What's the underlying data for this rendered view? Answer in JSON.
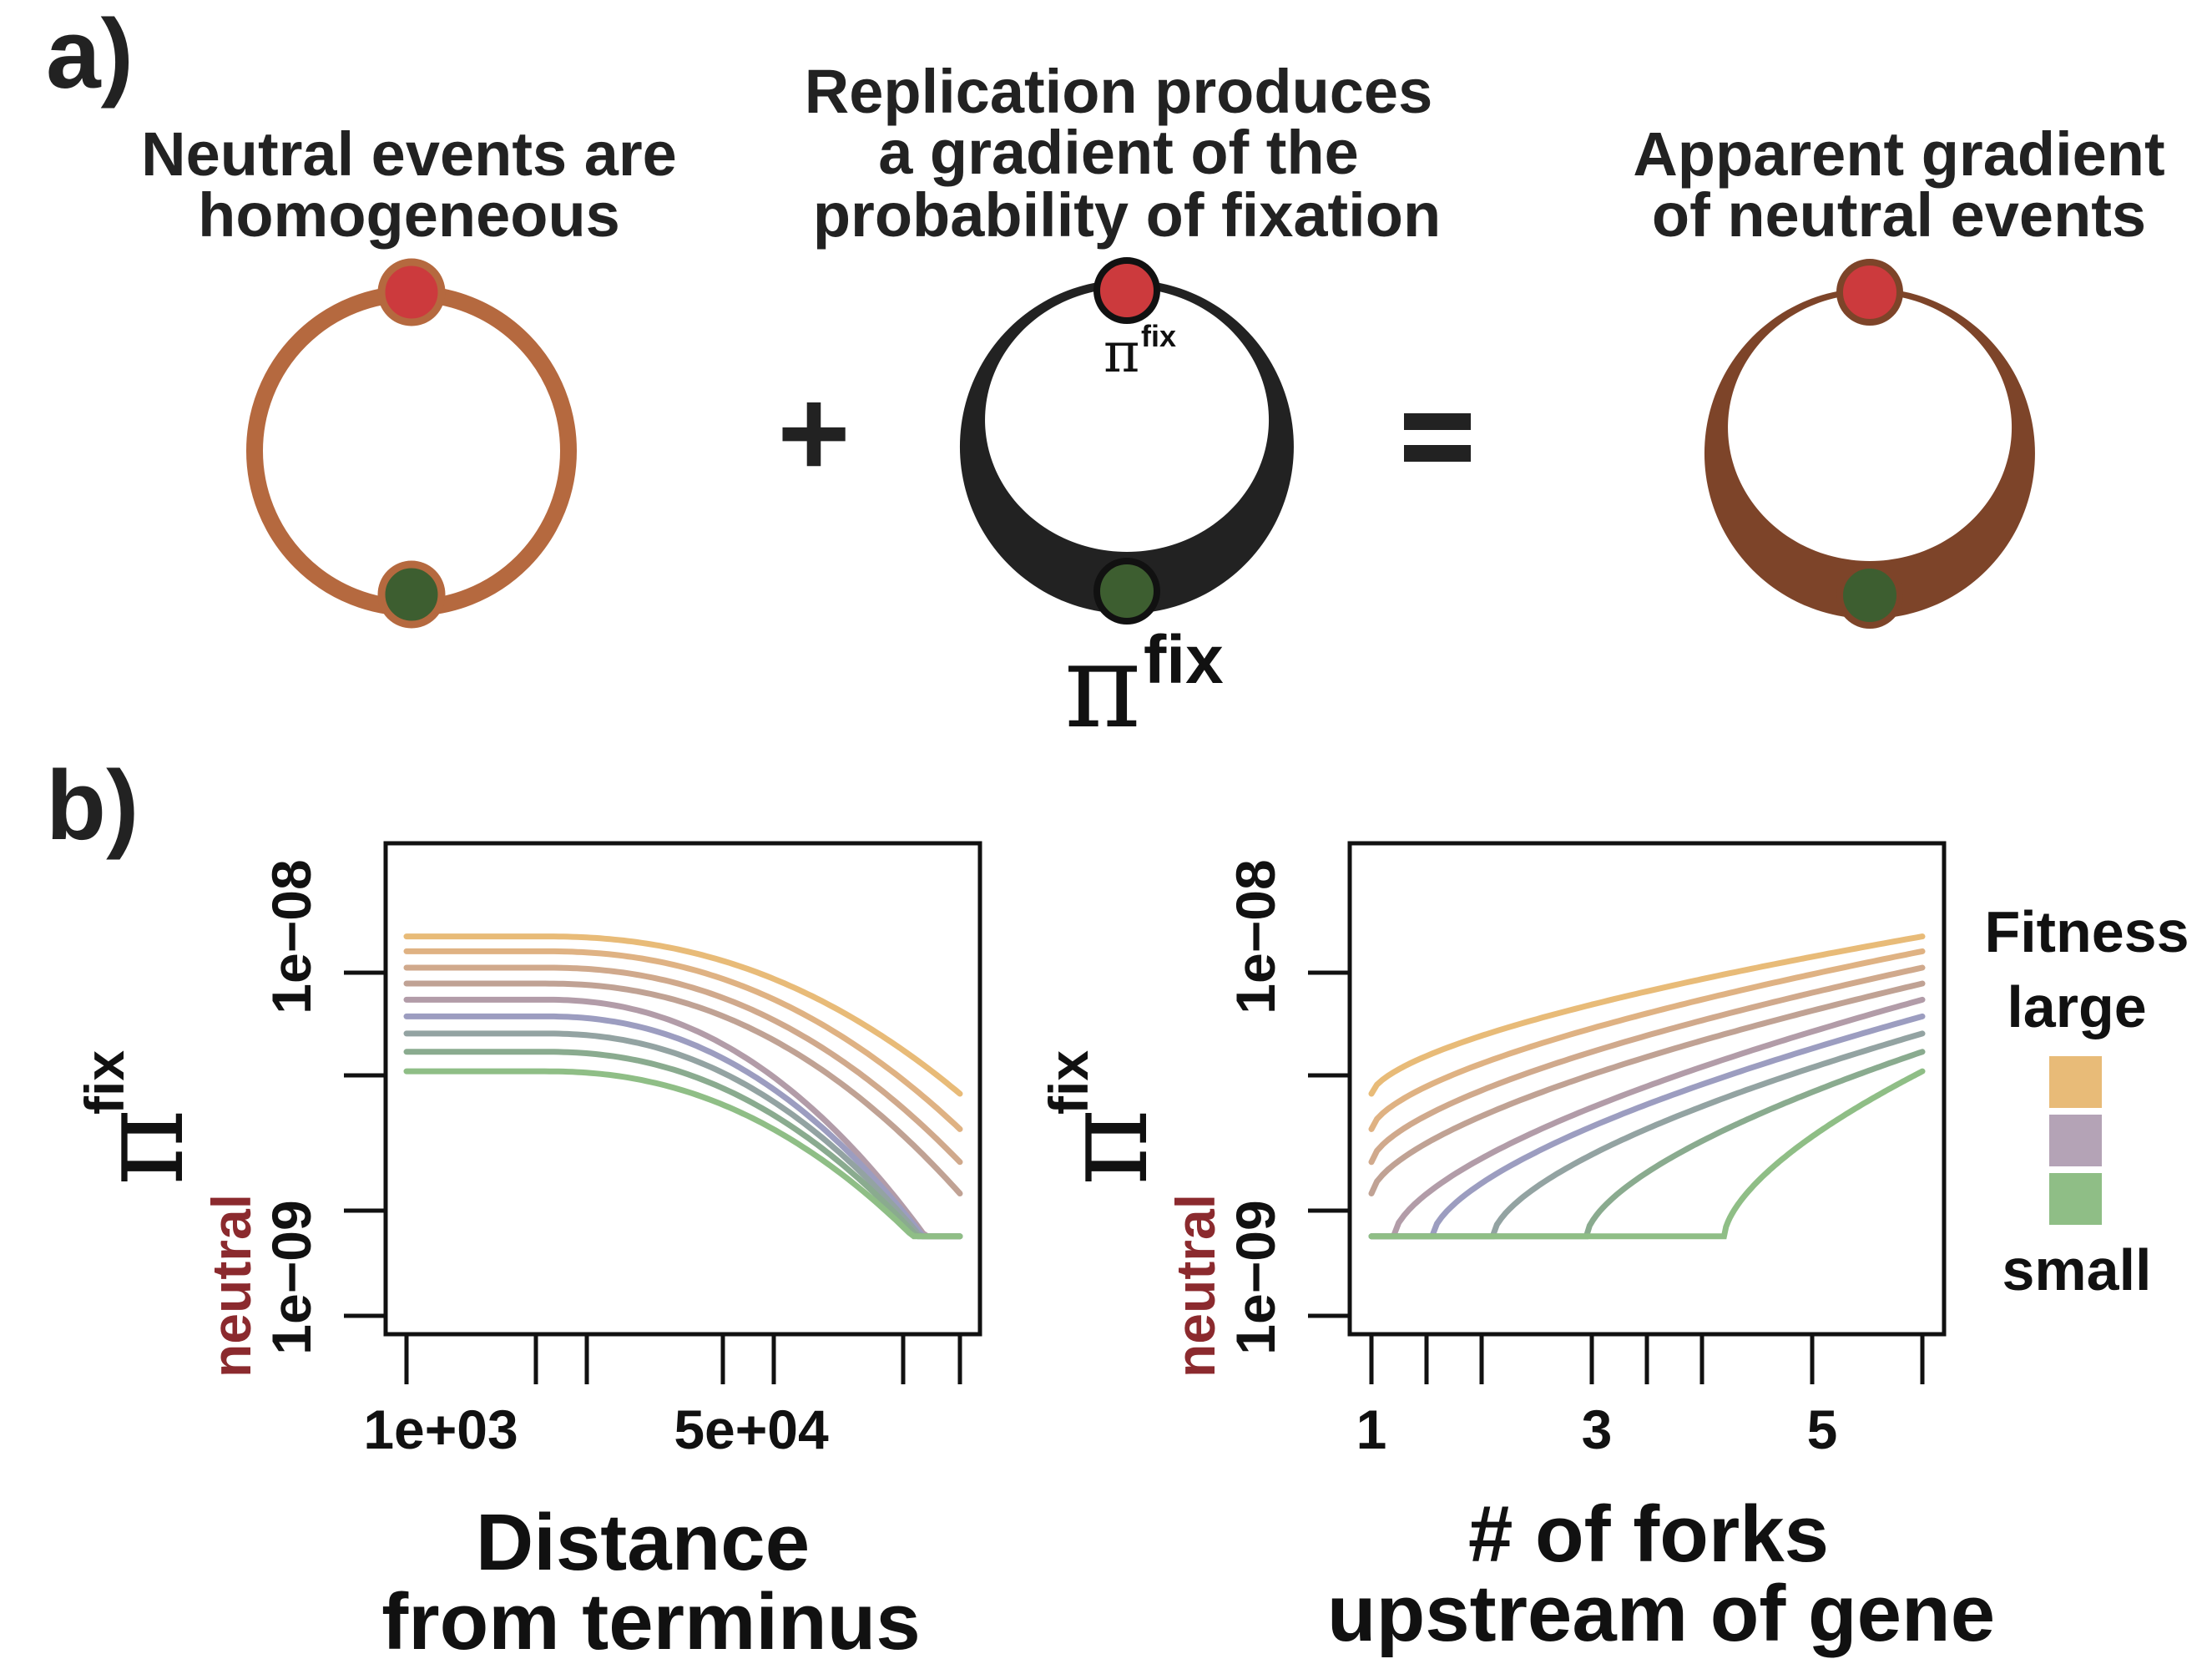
{
  "panel_a": {
    "label": "a)",
    "left_title": [
      "Neutral events are",
      "homogeneous"
    ],
    "middle_title": [
      "Replication produces",
      "a gradient of the",
      "probability of fixation"
    ],
    "right_title": [
      "Apparent gradient",
      "of neutral events"
    ],
    "plus": "+",
    "equals": "=",
    "pi_symbol": "π",
    "fix_text": "fix",
    "colors": {
      "ring_left": "#b5693f",
      "ring_black": "#222222",
      "ring_right": "#7d4429",
      "origin_dot": "#cc3a3d",
      "terminus_dot": "#3d5e30"
    }
  },
  "panel_b": {
    "label": "b)",
    "legend": {
      "title": "Fitness",
      "top": "large",
      "bottom": "small",
      "swatches": [
        "#e8bb78",
        "#b4a3b6",
        "#8fbe86"
      ]
    }
  },
  "chart_data": [
    {
      "type": "line",
      "xlabel": [
        "Distance",
        "from terminus"
      ],
      "ylabel_symbol": "π",
      "ylabel_sup": "fix",
      "x_scale": "log",
      "y_scale": "log",
      "x_ticks": [
        "1e+03",
        "5e+04"
      ],
      "y_ticks": [
        {
          "text": "1e−08",
          "color": "#111111",
          "value": 1e-08
        },
        {
          "text": "1e−09",
          "color": "#111111",
          "value": 1e-09
        },
        {
          "text": "neutral",
          "color": "#8b2a2e",
          "value": 7.8e-10
        }
      ],
      "series_colors": [
        "#e8bb78",
        "#dfb283",
        "#d0a98c",
        "#c0a294",
        "#b29ca8",
        "#9c9dc0",
        "#93a3a2",
        "#8aab8f",
        "#8fbe86"
      ],
      "series": [
        {
          "values_desc": "flat near top then declining at large distance",
          "plateau": 1.42e-08,
          "end": 3.1e-09
        },
        {
          "plateau": 1.23e-08,
          "end": 2.2e-09
        },
        {
          "plateau": 1.05e-08,
          "end": 1.6e-09
        },
        {
          "plateau": 9e-09,
          "end": 1.18e-09
        },
        {
          "plateau": 7.7e-09,
          "end": 7.8e-10
        },
        {
          "plateau": 6.55e-09,
          "end": 7.8e-10
        },
        {
          "plateau": 5.55e-09,
          "end": 7.8e-10
        },
        {
          "plateau": 4.65e-09,
          "end": 7.8e-10
        },
        {
          "plateau": 3.85e-09,
          "end": 7.8e-10
        }
      ]
    },
    {
      "type": "line",
      "xlabel": [
        "# of forks",
        "upstream of gene"
      ],
      "ylabel_symbol": "π",
      "ylabel_sup": "fix",
      "x_scale": "linear",
      "y_scale": "log",
      "xlim": [
        1,
        6
      ],
      "x_ticks": [
        "1",
        "3",
        "5"
      ],
      "y_ticks": [
        {
          "text": "1e−08",
          "color": "#111111",
          "value": 1e-08
        },
        {
          "text": "1e−09",
          "color": "#111111",
          "value": 1e-09
        },
        {
          "text": "neutral",
          "color": "#8b2a2e",
          "value": 7.8e-10
        }
      ],
      "series_colors": [
        "#e8bb78",
        "#dfb283",
        "#d0a98c",
        "#c0a294",
        "#b29ca8",
        "#9c9dc0",
        "#93a3a2",
        "#8aab8f",
        "#8fbe86"
      ],
      "series": [
        {
          "start": 3.1e-09,
          "end": 1.42e-08
        },
        {
          "start": 2.2e-09,
          "end": 1.23e-08
        },
        {
          "start": 1.6e-09,
          "end": 1.05e-08
        },
        {
          "start": 1.18e-09,
          "end": 9e-09
        },
        {
          "start": 7.8e-10,
          "end": 7.7e-09
        },
        {
          "start": 7.8e-10,
          "end": 6.55e-09
        },
        {
          "start": 7.8e-10,
          "end": 5.55e-09
        },
        {
          "start": 7.8e-10,
          "end": 4.65e-09
        },
        {
          "start": 7.8e-10,
          "end": 3.85e-09
        }
      ]
    }
  ]
}
